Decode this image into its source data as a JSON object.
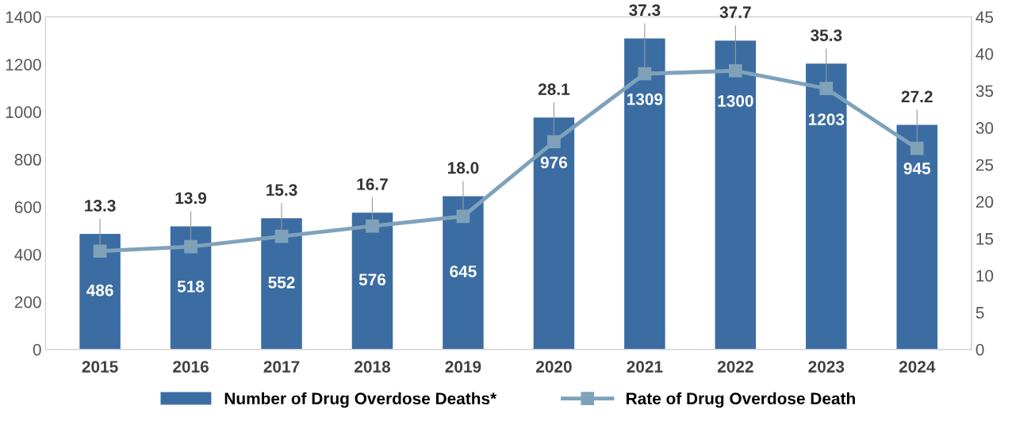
{
  "chart_data": {
    "type": "bar",
    "categories": [
      "2015",
      "2016",
      "2017",
      "2018",
      "2019",
      "2020",
      "2021",
      "2022",
      "2023",
      "2024"
    ],
    "series": [
      {
        "name": "Number of Drug Overdose Deaths*",
        "color": "#3b6da3",
        "values": [
          486,
          518,
          552,
          576,
          645,
          976,
          1309,
          1300,
          1203,
          945
        ]
      },
      {
        "name": "Rate of Drug Overdose Death",
        "type": "line",
        "axis": "y2",
        "color": "#7fa2bb",
        "marker": "square",
        "values": [
          13.3,
          13.9,
          15.3,
          16.7,
          18.0,
          28.1,
          37.3,
          37.7,
          35.3,
          27.2
        ],
        "value_labels": [
          "13.3",
          "13.9",
          "15.3",
          "16.7",
          "18.0",
          "28.1",
          "37.3",
          "37.7",
          "35.3",
          "27.2"
        ]
      }
    ],
    "ylim": [
      0,
      1400
    ],
    "yticks": [
      0,
      200,
      400,
      600,
      800,
      1000,
      1200,
      1400
    ],
    "y2lim": [
      0,
      45
    ],
    "y2ticks": [
      0,
      5,
      10,
      15,
      20,
      25,
      30,
      35,
      40,
      45
    ],
    "data_labels": true,
    "grid": false,
    "legend": "bottom"
  }
}
